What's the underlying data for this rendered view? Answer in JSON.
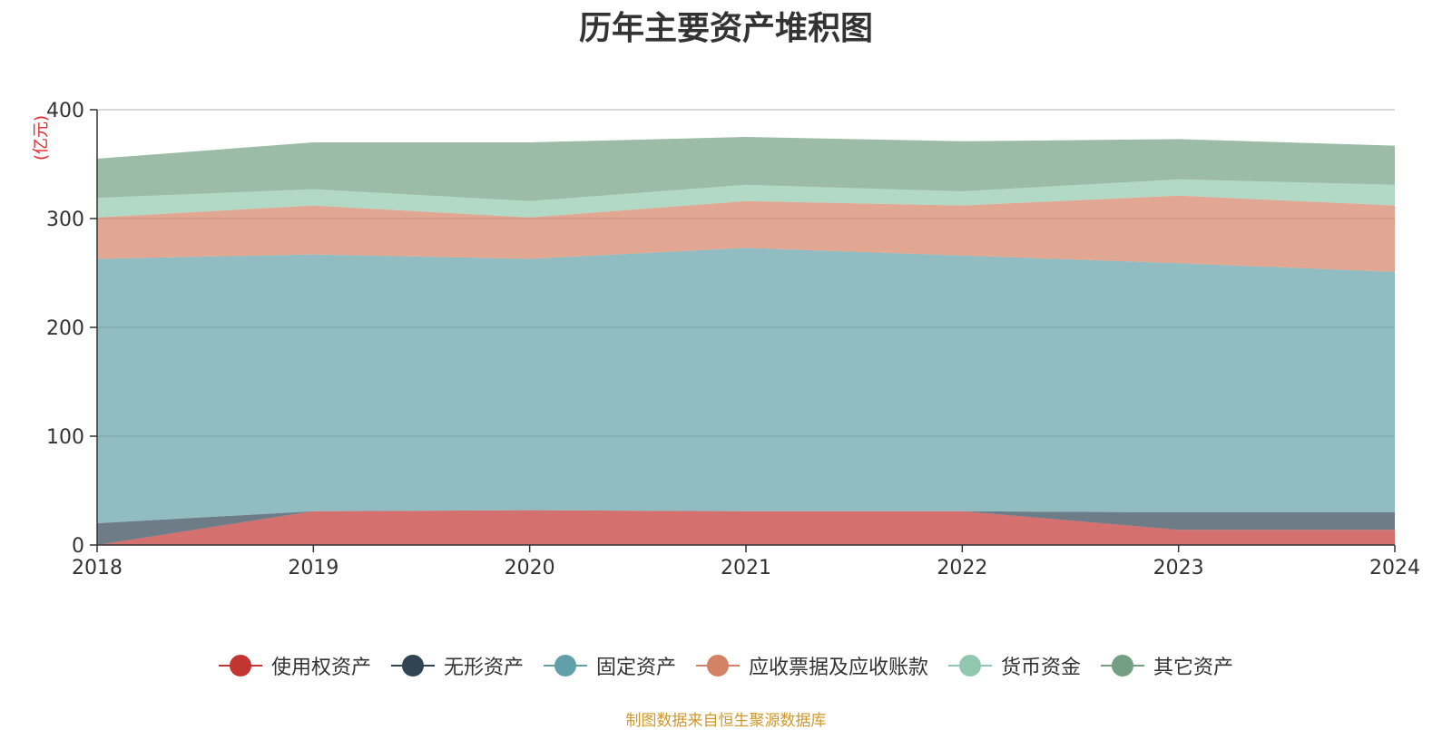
{
  "chart_data": {
    "type": "area",
    "stacked": true,
    "title": "历年主要资产堆积图",
    "ylabel": "(亿元)",
    "xlabel": "",
    "categories": [
      "2018",
      "2019",
      "2020",
      "2021",
      "2022",
      "2023",
      "2024"
    ],
    "ylim": [
      0,
      400
    ],
    "yticks": [
      0,
      100,
      200,
      300,
      400
    ],
    "grid": true,
    "legend_position": "bottom",
    "series": [
      {
        "name": "使用权资产",
        "color": "#c23531",
        "values": [
          0,
          31,
          32,
          31,
          31,
          14,
          14
        ]
      },
      {
        "name": "无形资产",
        "color": "#2f4554",
        "values": [
          20,
          0,
          0,
          0,
          0,
          16,
          16
        ]
      },
      {
        "name": "固定资产",
        "color": "#61a0a8",
        "values": [
          243,
          236,
          231,
          242,
          235,
          229,
          221
        ]
      },
      {
        "name": "应收票据及应收账款",
        "color": "#d48265",
        "values": [
          38,
          45,
          38,
          43,
          46,
          62,
          61
        ]
      },
      {
        "name": "货币资金",
        "color": "#91c7ae",
        "values": [
          18,
          15,
          15,
          15,
          13,
          15,
          19
        ]
      },
      {
        "name": "其它资产",
        "color": "#749f83",
        "values": [
          36,
          43,
          54,
          44,
          46,
          37,
          36
        ]
      }
    ]
  },
  "footer": {
    "source": "制图数据来自恒生聚源数据库"
  }
}
